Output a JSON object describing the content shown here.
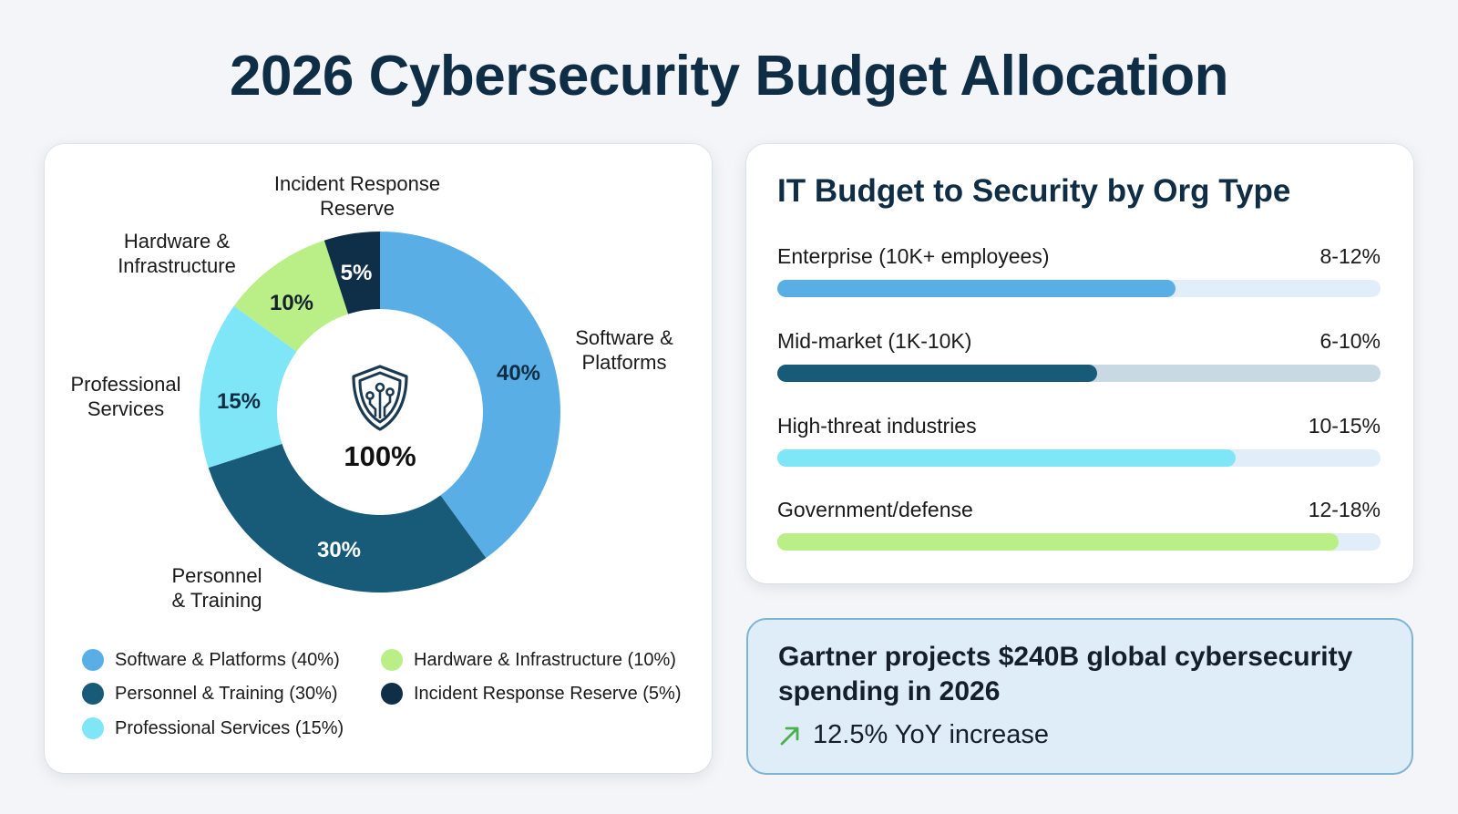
{
  "header": {
    "title": "2026 Cybersecurity Budget Allocation"
  },
  "donut": {
    "center_value": "100%",
    "center_icon": "shield-circuit-icon",
    "segments": [
      {
        "name": "Software & Platforms",
        "label_line1": "Software &",
        "label_line2": "Platforms",
        "percent_label": "40%",
        "value": 40,
        "color": "#5aaee6",
        "text_color": "#0f2d44"
      },
      {
        "name": "Personnel & Training",
        "label_line1": "Personnel",
        "label_line2": "& Training",
        "percent_label": "30%",
        "value": 30,
        "color": "#175b79",
        "text_color": "#ffffff"
      },
      {
        "name": "Professional Services",
        "label_line1": "Professional",
        "label_line2": "Services",
        "percent_label": "15%",
        "value": 15,
        "color": "#7fe6f7",
        "text_color": "#0f2d44"
      },
      {
        "name": "Hardware & Infrastructure",
        "label_line1": "Hardware &",
        "label_line2": "Infrastructure",
        "percent_label": "10%",
        "value": 10,
        "color": "#b9ef86",
        "text_color": "#16202a"
      },
      {
        "name": "Incident Response Reserve",
        "label_line1": "Incident Response",
        "label_line2": "Reserve",
        "percent_label": "5%",
        "value": 5,
        "color": "#0f2f48",
        "text_color": "#ffffff"
      }
    ]
  },
  "legend": {
    "items": [
      {
        "label": "Software & Platforms (40%)",
        "color": "#5aaee6"
      },
      {
        "label": "Personnel & Training (30%)",
        "color": "#175b79"
      },
      {
        "label": "Professional Services (15%)",
        "color": "#7fe6f7"
      },
      {
        "label": "Hardware & Infrastructure (10%)",
        "color": "#b9ef86"
      },
      {
        "label": "Incident Response Reserve (5%)",
        "color": "#0f2f48"
      }
    ]
  },
  "bars": {
    "title": "IT Budget to Security by Org Type",
    "rows": [
      {
        "label": "Enterprise (10K+ employees)",
        "value_label": "8-12%",
        "fill_fraction": 0.66,
        "fill_color": "#5aaee6",
        "track_color": "#e1edf8"
      },
      {
        "label": "Mid-market (1K-10K)",
        "value_label": "6-10%",
        "fill_fraction": 0.53,
        "fill_color": "#175b79",
        "track_color": "#c9d9e3"
      },
      {
        "label": "High-threat industries",
        "value_label": "10-15%",
        "fill_fraction": 0.76,
        "fill_color": "#7fe6f7",
        "track_color": "#e1edf8"
      },
      {
        "label": "Government/defense",
        "value_label": "12-18%",
        "fill_fraction": 0.93,
        "fill_color": "#b9ef86",
        "track_color": "#e1edf8"
      }
    ]
  },
  "callout": {
    "headline": "Gartner projects $240B global cybersecurity spending in 2026",
    "sub_text": "12.5% YoY increase",
    "trend_icon": "arrow-up-right-icon",
    "trend_color": "#4caf50"
  },
  "chart_data": [
    {
      "type": "pie",
      "title": "2026 Cybersecurity Budget Allocation",
      "subtype": "donut",
      "center_label": "100%",
      "categories": [
        "Software & Platforms",
        "Personnel & Training",
        "Professional Services",
        "Hardware & Infrastructure",
        "Incident Response Reserve"
      ],
      "values": [
        40,
        30,
        15,
        10,
        5
      ],
      "colors": [
        "#5aaee6",
        "#175b79",
        "#7fe6f7",
        "#b9ef86",
        "#0f2f48"
      ],
      "legend_position": "bottom"
    },
    {
      "type": "bar",
      "orientation": "horizontal",
      "title": "IT Budget to Security by Org Type",
      "categories": [
        "Enterprise (10K+ employees)",
        "Mid-market (1K-10K)",
        "High-threat industries",
        "Government/defense"
      ],
      "range_labels": [
        "8-12%",
        "6-10%",
        "10-15%",
        "12-18%"
      ],
      "ranges": [
        [
          8,
          12
        ],
        [
          6,
          10
        ],
        [
          10,
          15
        ],
        [
          12,
          18
        ]
      ],
      "fill_fractions": [
        0.66,
        0.53,
        0.76,
        0.93
      ],
      "xlabel": "",
      "ylabel": "",
      "grid": false
    }
  ]
}
